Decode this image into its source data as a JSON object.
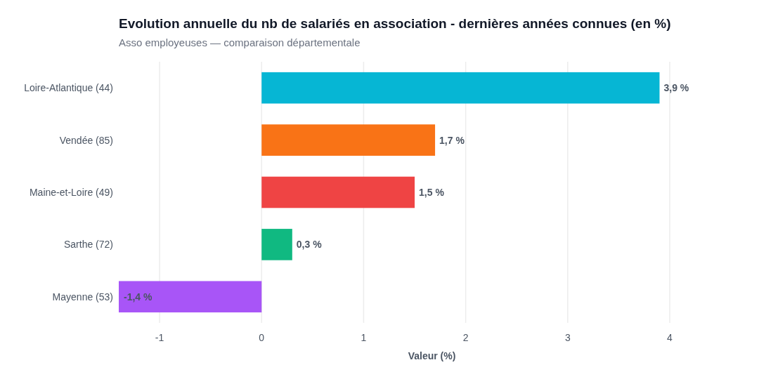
{
  "chart_data": {
    "type": "bar",
    "orientation": "horizontal",
    "title": "Evolution annuelle du nb de salariés en association - dernières années connues (en %)",
    "subtitle": "Asso employeuses — comparaison départementale",
    "xlabel": "Valeur (%)",
    "categories": [
      "Loire-Atlantique (44)",
      "Vendée (85)",
      "Maine-et-Loire (49)",
      "Sarthe (72)",
      "Mayenne (53)"
    ],
    "values": [
      3.9,
      1.7,
      1.5,
      0.3,
      -1.4
    ],
    "colors": [
      "#06b6d4",
      "#f97316",
      "#ef4444",
      "#10b981",
      "#a855f7"
    ],
    "value_labels": [
      "3,9 %",
      "1,7 %",
      "1,5 %",
      "0,3 %",
      "-1,4 %"
    ],
    "xlim": [
      -1.4,
      4
    ],
    "xticks": [
      -1,
      0,
      1,
      2,
      3,
      4
    ],
    "grid": "x"
  }
}
